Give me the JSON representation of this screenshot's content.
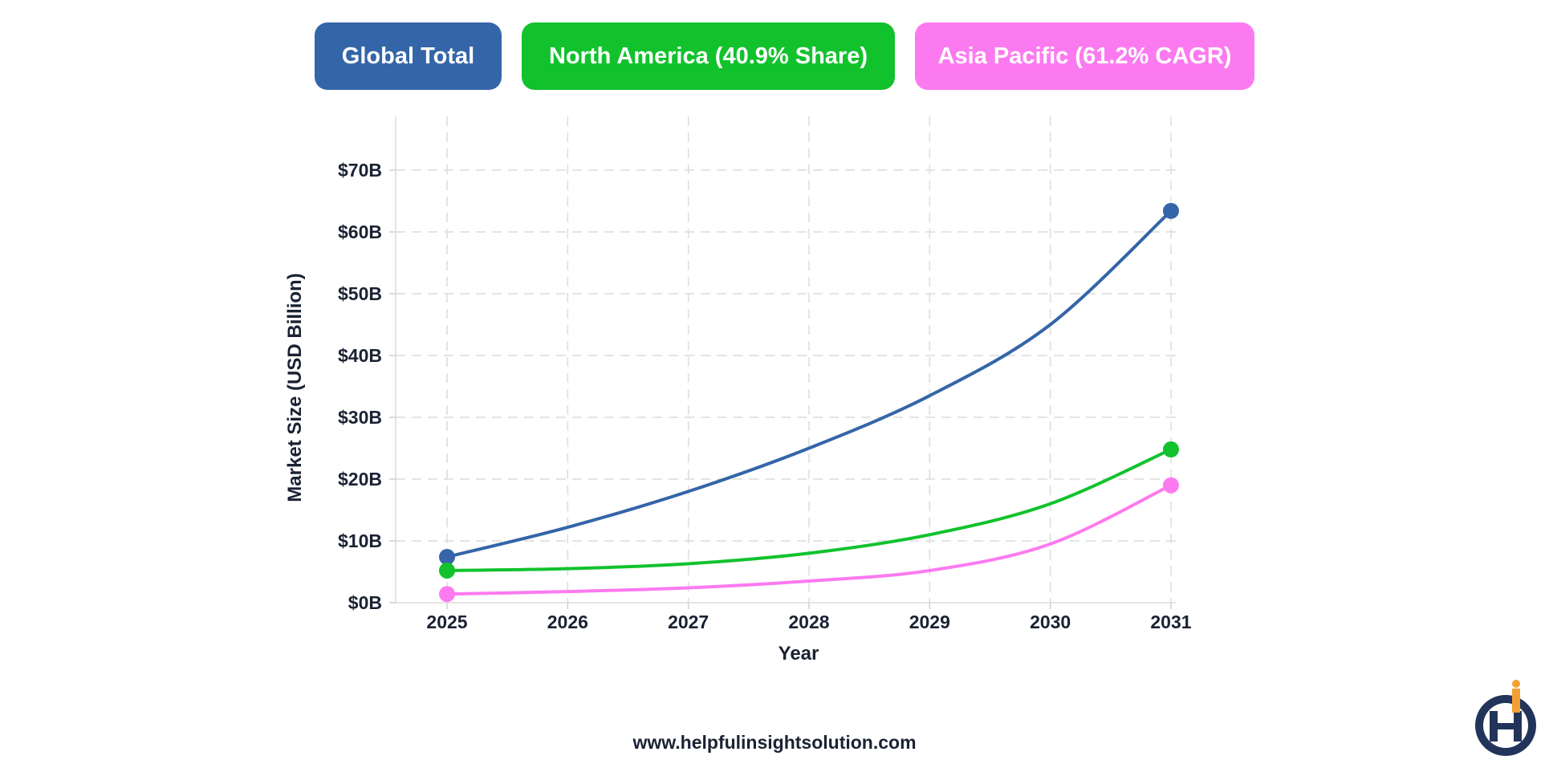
{
  "legend": [
    {
      "label": "Global Total",
      "color": "#3465a8"
    },
    {
      "label": "North America (40.9% Share)",
      "color": "#11c22d"
    },
    {
      "label": "Asia Pacific (61.2% CAGR)",
      "color": "#fc7af0"
    }
  ],
  "footer": {
    "url": "www.helpfulinsightsolution.com"
  },
  "logo": {
    "icon": "helpful-insight-logo-icon"
  },
  "chart_data": {
    "type": "line",
    "title": "",
    "xlabel": "Year",
    "ylabel": "Market Size (USD Billion)",
    "x": [
      2025,
      2026,
      2027,
      2028,
      2029,
      2030,
      2031
    ],
    "x_tick_labels": [
      "2025",
      "2026",
      "2027",
      "2028",
      "2029",
      "2030",
      "2031"
    ],
    "y_tick_values": [
      0,
      10,
      20,
      30,
      40,
      50,
      60,
      70
    ],
    "y_tick_labels": [
      "$0B",
      "$10B",
      "$20B",
      "$30B",
      "$40B",
      "$50B",
      "$60B",
      "$70B"
    ],
    "ylim": [
      0,
      78
    ],
    "xlim": [
      2024.6,
      2031.1
    ],
    "grid": true,
    "legend_position": "top",
    "series": [
      {
        "name": "Global Total",
        "color": "#3465a8",
        "values": [
          7.4,
          12.2,
          18.0,
          25.0,
          33.5,
          45.0,
          63.4
        ]
      },
      {
        "name": "North America (40.9% Share)",
        "color": "#11c22d",
        "values": [
          5.2,
          5.5,
          6.3,
          8.0,
          11.0,
          16.0,
          24.8
        ]
      },
      {
        "name": "Asia Pacific (61.2% CAGR)",
        "color": "#fc7af0",
        "values": [
          1.4,
          1.8,
          2.4,
          3.5,
          5.2,
          9.5,
          19.0
        ]
      }
    ]
  }
}
